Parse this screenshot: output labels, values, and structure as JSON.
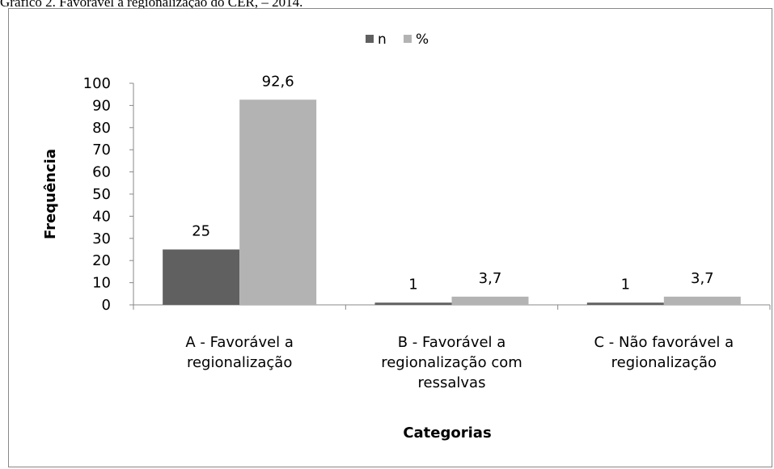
{
  "caption": "Gráfico 2. Favorável a regionalização do CER, – 2014.",
  "chart_data": {
    "type": "bar",
    "categories": [
      [
        "A - Favorável a",
        "regionalização"
      ],
      [
        "B - Favorável a",
        "regionalização com",
        "ressalvas"
      ],
      [
        "C - Não favorável a",
        "regionalização"
      ]
    ],
    "series": [
      {
        "name": "n",
        "values": [
          25,
          1,
          1
        ],
        "labels": [
          "25",
          "1",
          "1"
        ],
        "color": "#606060"
      },
      {
        "name": "%",
        "values": [
          92.6,
          3.7,
          3.7
        ],
        "labels": [
          "92,6",
          "3,7",
          "3,7"
        ],
        "color": "#b3b3b3"
      }
    ],
    "xlabel": "Categorias",
    "ylabel": "Frequência",
    "ylim": [
      0,
      100
    ],
    "yticks": [
      0,
      10,
      20,
      30,
      40,
      50,
      60,
      70,
      80,
      90,
      100
    ],
    "grid": false,
    "legend": "top-center"
  }
}
